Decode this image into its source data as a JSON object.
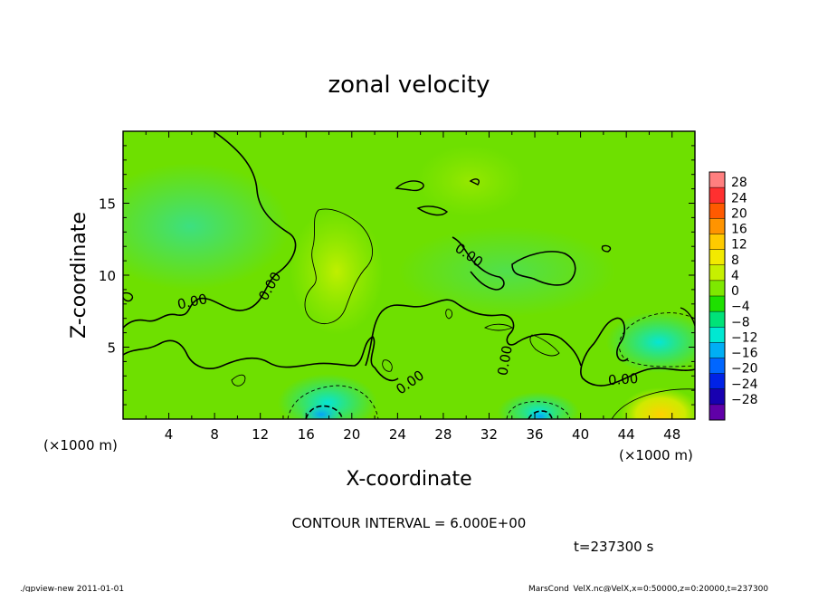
{
  "chart_data": {
    "type": "heatmap",
    "title": "zonal velocity",
    "xlabel": "X-coordinate",
    "ylabel": "Z-coordinate",
    "x_unit": "(×1000 m)",
    "x_unit_right": "(×1000 m)",
    "xlim": [
      0,
      50
    ],
    "ylim": [
      0,
      20
    ],
    "x_ticks": [
      "4",
      "8",
      "12",
      "16",
      "20",
      "24",
      "28",
      "32",
      "36",
      "40",
      "44",
      "48"
    ],
    "y_ticks": [
      "5",
      "10",
      "15"
    ],
    "colorbar": {
      "labels": [
        "28",
        "24",
        "20",
        "16",
        "12",
        "8",
        "4",
        "0",
        "−4",
        "−8",
        "−12",
        "−16",
        "−20",
        "−24",
        "−28"
      ],
      "colors": [
        "#ff7f7f",
        "#ff3030",
        "#ff5a00",
        "#ff9400",
        "#ffcb00",
        "#f2ea00",
        "#c6f000",
        "#7ee800",
        "#1ee000",
        "#00e278",
        "#00e8d2",
        "#00aef4",
        "#0066ff",
        "#0022e6",
        "#1800b0",
        "#6000a8"
      ]
    },
    "contour_labels": [
      "0.00",
      "0.00",
      "0.00",
      "0.00",
      "0.00",
      "0.00"
    ],
    "contour_interval": "CONTOUR INTERVAL = 6.000E+00",
    "time": "t=237300 s"
  },
  "footer": {
    "left": "./gpview-new  2011-01-01",
    "right": "MarsCond_VelX.nc@VelX,x=0:50000,z=0:20000,t=237300"
  }
}
